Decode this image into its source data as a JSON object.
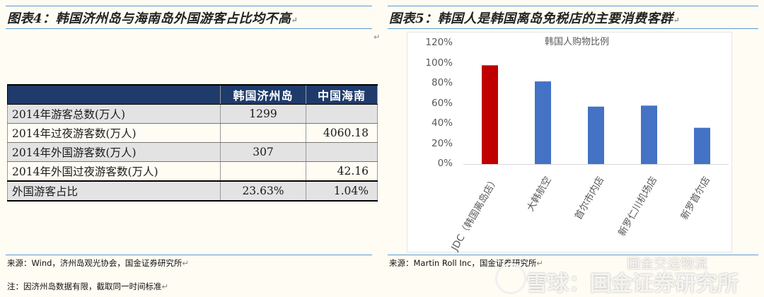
{
  "left": {
    "caption": "图表4：韩国济州岛与海南岛外国游客占比均不高",
    "table": {
      "headers": [
        "",
        "韩国济州岛",
        "中国海南"
      ],
      "rows": [
        {
          "label": "2014年游客总数(万人)",
          "v1": "1299",
          "v2": ""
        },
        {
          "label": "2014年过夜游客数(万人)",
          "v1": "",
          "v2": "4060.18"
        },
        {
          "label": "2014年外国游客数(万人)",
          "v1": "307",
          "v2": ""
        },
        {
          "label": "2014年外国过夜游客数(万人)",
          "v1": "",
          "v2": "42.16"
        },
        {
          "label": "外国游客占比",
          "v1": "23.63%",
          "v2": "1.04%"
        }
      ]
    },
    "source": "来源：Wind，济州岛观光协会，国金证券研究所",
    "note": "注：因济州岛数据有限，截取同一时间标准"
  },
  "right": {
    "caption": "图表5：韩国人是韩国离岛免税店的主要消费客群",
    "source": "来源：Martin Roll Inc，国金证券研究所"
  },
  "para_mark": "↵",
  "colors": {
    "accent": "#c00000",
    "bar": "#4472c4",
    "rule": "#5b9bd5",
    "header_bg": "#1f3b6b"
  },
  "watermark": {
    "brand": "雪球：国金证券研究所",
    "account": "国金交运物流"
  },
  "chart_data": {
    "type": "bar",
    "title": "韩国人购物比例",
    "categories": [
      "JDC（韩国离岛店）",
      "大韩航空",
      "首尔市内店",
      "新罗仁川机场店",
      "新罗首尔店"
    ],
    "values": [
      98,
      82,
      57,
      58,
      36
    ],
    "highlight": [
      true,
      false,
      false,
      false,
      false
    ],
    "ylim": [
      0,
      120
    ],
    "yticks": [
      "0%",
      "20%",
      "40%",
      "60%",
      "80%",
      "100%",
      "120%"
    ],
    "unit": "%",
    "grid": false,
    "legend": "none"
  }
}
